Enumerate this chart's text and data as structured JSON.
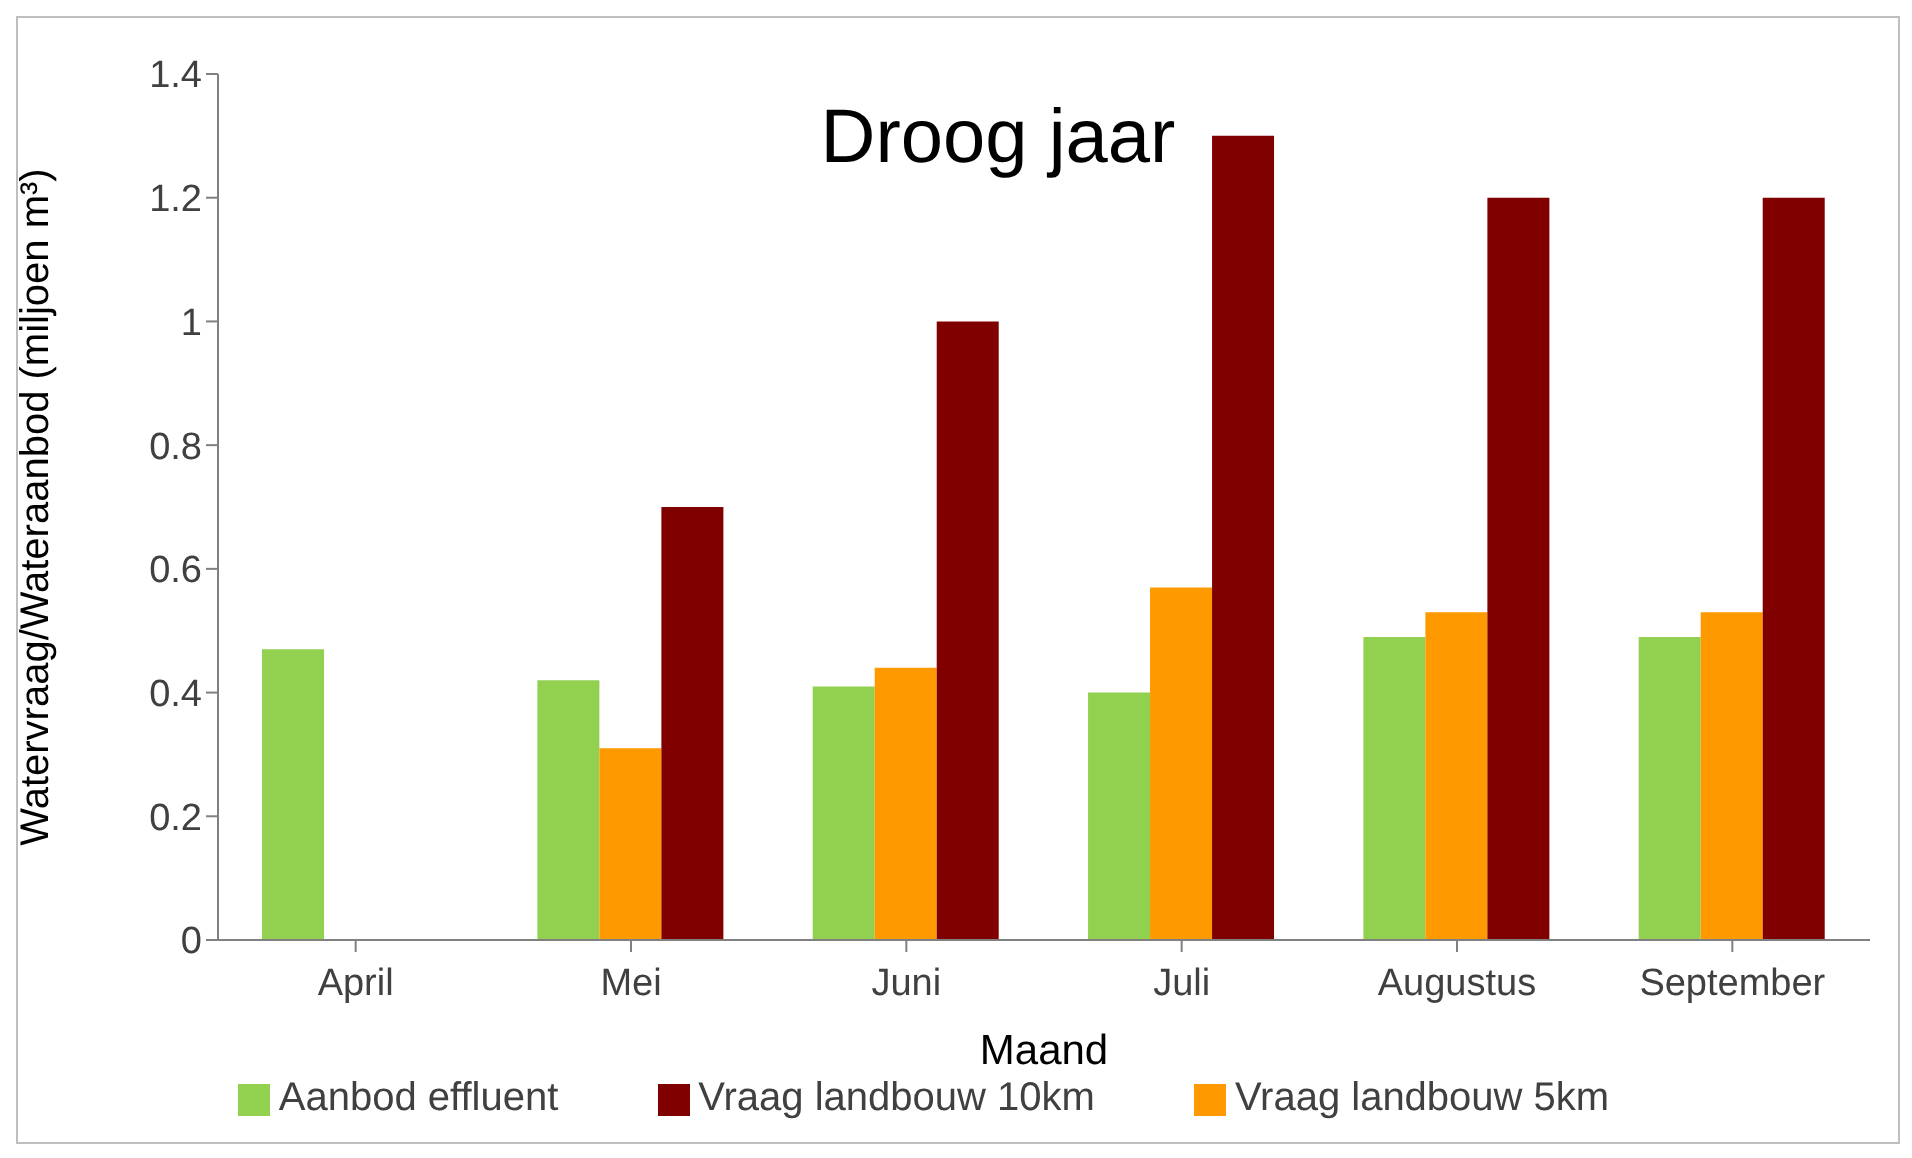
{
  "chart_data": {
    "type": "bar",
    "title": "Droog jaar",
    "xlabel": "Maand",
    "ylabel": "Watervraag/Wateraanbod (miljoen m³)",
    "categories": [
      "April",
      "Mei",
      "Juni",
      "Juli",
      "Augustus",
      "September"
    ],
    "series": [
      {
        "name": "Aanbod effluent",
        "color": "#92d050",
        "values": [
          0.47,
          0.42,
          0.41,
          0.4,
          0.49,
          0.49
        ]
      },
      {
        "name": "Vraag landbouw 5km",
        "color": "#ff9900",
        "values": [
          null,
          0.31,
          0.44,
          0.57,
          0.53,
          0.53
        ]
      },
      {
        "name": "Vraag landbouw 10km",
        "color": "#800000",
        "values": [
          null,
          0.7,
          1.0,
          1.3,
          1.2,
          1.2
        ]
      }
    ],
    "ylim": [
      0,
      1.4
    ],
    "yticks": [
      0,
      0.2,
      0.4,
      0.6,
      0.8,
      1,
      1.2,
      1.4
    ],
    "legend": "bottom"
  }
}
